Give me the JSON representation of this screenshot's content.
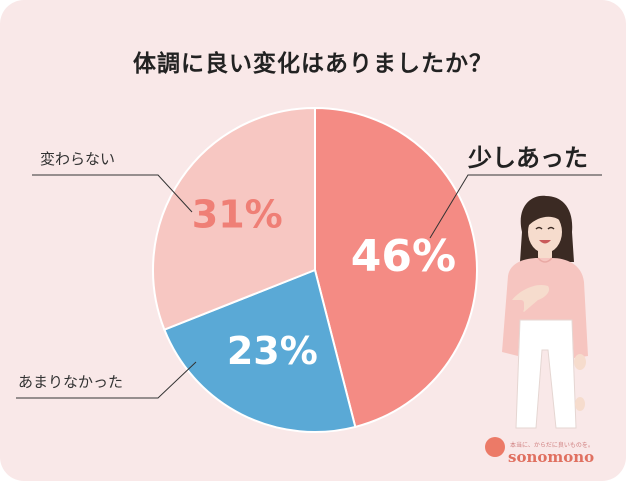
{
  "title": "体調に良い変化はありましたか？",
  "chart_data": {
    "type": "pie",
    "title": "体調に良い変化はありましたか？",
    "slices": [
      {
        "label": "少しあった",
        "value": 46,
        "value_label": "46%",
        "color": "#f48b84",
        "text_color": "#ffffff"
      },
      {
        "label": "あまりなかった",
        "value": 23,
        "value_label": "23%",
        "color": "#5aa9d6",
        "text_color": "#ffffff"
      },
      {
        "label": "変わらない",
        "value": 31,
        "value_label": "31%",
        "color": "#f7c7c2",
        "text_color": "#ef7f76"
      }
    ]
  },
  "logo": {
    "tagline": "本当に、からだに良いものを。",
    "name": "sonomono"
  },
  "colors": {
    "background": "#f9e8e8"
  },
  "illustration": "woman-hand-on-chest-smiling"
}
